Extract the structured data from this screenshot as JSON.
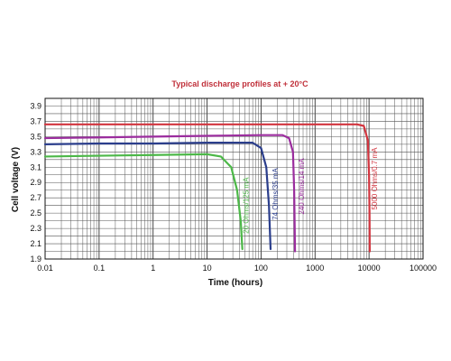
{
  "chart_data": {
    "type": "line",
    "title": "Typical discharge profiles at + 20°C",
    "xlabel": "Time (hours)",
    "ylabel": "Cell voltage (V)",
    "x_scale": "log",
    "xlim": [
      0.01,
      100000
    ],
    "ylim": [
      1.9,
      4.0
    ],
    "grid": true,
    "x_ticks": [
      0.01,
      0.1,
      1,
      10,
      100,
      1000,
      10000,
      100000
    ],
    "x_tick_labels": [
      "0.01",
      "0.1",
      "1",
      "10",
      "100",
      "1000",
      "10000",
      "100000"
    ],
    "y_ticks": [
      1.9,
      2.1,
      2.3,
      2.5,
      2.7,
      2.9,
      3.1,
      3.3,
      3.5,
      3.7,
      3.9
    ],
    "y_tick_labels": [
      "1.9",
      "2.1",
      "2.3",
      "2.5",
      "2.7",
      "2.9",
      "3.1",
      "3.3",
      "3.5",
      "3.7",
      "3.9"
    ],
    "series": [
      {
        "name": "5000 Ohms/0.7 mA",
        "color": "#d2353f",
        "points": [
          [
            0.01,
            3.66
          ],
          [
            0.1,
            3.66
          ],
          [
            1,
            3.66
          ],
          [
            10,
            3.66
          ],
          [
            100,
            3.66
          ],
          [
            1000,
            3.66
          ],
          [
            6000,
            3.66
          ],
          [
            8000,
            3.64
          ],
          [
            9500,
            3.45
          ],
          [
            10000,
            3.0
          ],
          [
            10200,
            2.5
          ],
          [
            10300,
            2.0
          ]
        ]
      },
      {
        "name": "240 Ohms/14 mA",
        "color": "#9b2d9e",
        "points": [
          [
            0.01,
            3.48
          ],
          [
            0.1,
            3.49
          ],
          [
            1,
            3.5
          ],
          [
            10,
            3.51
          ],
          [
            100,
            3.52
          ],
          [
            250,
            3.52
          ],
          [
            330,
            3.48
          ],
          [
            390,
            3.3
          ],
          [
            410,
            2.8
          ],
          [
            420,
            2.3
          ],
          [
            425,
            2.0
          ]
        ]
      },
      {
        "name": "74 Ohms/35 mA",
        "color": "#2b3e8c",
        "points": [
          [
            0.01,
            3.4
          ],
          [
            0.1,
            3.41
          ],
          [
            1,
            3.41
          ],
          [
            10,
            3.42
          ],
          [
            70,
            3.42
          ],
          [
            100,
            3.35
          ],
          [
            125,
            3.1
          ],
          [
            140,
            2.6
          ],
          [
            150,
            2.03
          ]
        ]
      },
      {
        "name": "20 Ohms/125 mA",
        "color": "#4cb848",
        "points": [
          [
            0.01,
            3.24
          ],
          [
            0.1,
            3.25
          ],
          [
            1,
            3.26
          ],
          [
            10,
            3.27
          ],
          [
            18,
            3.24
          ],
          [
            28,
            3.1
          ],
          [
            36,
            2.8
          ],
          [
            42,
            2.4
          ],
          [
            45,
            2.03
          ]
        ]
      }
    ]
  }
}
